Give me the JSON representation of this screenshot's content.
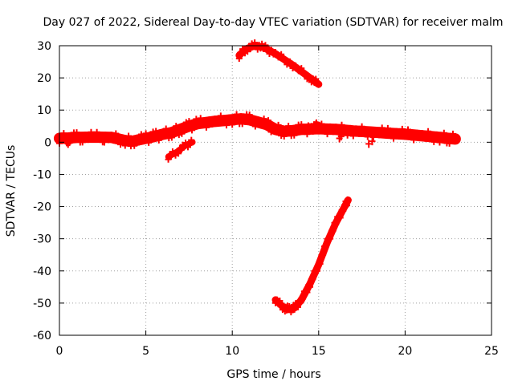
{
  "chart_data": {
    "type": "scatter",
    "title": "Day 027 of 2022, Sidereal Day-to-day VTEC variation (SDTVAR) for receiver malm",
    "xlabel": "GPS time / hours",
    "ylabel": "SDTVAR / TECUs",
    "xlim": [
      0,
      25
    ],
    "ylim": [
      -60,
      30
    ],
    "xticks": [
      0,
      5,
      10,
      15,
      20,
      25
    ],
    "yticks": [
      -60,
      -50,
      -40,
      -30,
      -20,
      -10,
      0,
      10,
      20,
      30
    ],
    "xtick_labels": [
      "0",
      "5",
      "10",
      "15",
      "20",
      "25"
    ],
    "ytick_labels": [
      "-60",
      "-50",
      "-40",
      "-30",
      "-20",
      "-10",
      "0",
      "10",
      "20",
      "30"
    ],
    "grid": true,
    "color": "#ff0000",
    "series": [
      {
        "name": "main-band",
        "band": 2.2,
        "x": [
          0,
          0.5,
          1,
          2,
          3,
          3.8,
          4.2,
          5,
          5.5,
          6,
          6.5,
          7,
          7.5,
          8,
          9,
          10,
          10.5,
          11,
          12,
          12.5,
          13,
          13.5,
          14,
          15,
          16,
          17,
          18,
          19,
          20,
          21,
          22,
          22.5,
          22.9
        ],
        "y": [
          1.2,
          1.3,
          1.5,
          1.6,
          1.5,
          0.5,
          0.3,
          1.2,
          1.8,
          2.5,
          3,
          4,
          5,
          5.8,
          6.5,
          7,
          7.3,
          7,
          5.5,
          4,
          3.4,
          3.6,
          4,
          4.2,
          4,
          3.5,
          3.2,
          2.8,
          2.5,
          2,
          1.5,
          1.2,
          1
        ]
      },
      {
        "name": "arc-15-upper",
        "band": 1.0,
        "x": [
          14.2,
          14.6,
          15.0
        ],
        "y": [
          4,
          5,
          5.6
        ]
      },
      {
        "name": "arc-low-7",
        "band": 1.2,
        "x": [
          6.3,
          6.8,
          7.3,
          7.7
        ],
        "y": [
          -4.5,
          -3,
          -1,
          0
        ]
      },
      {
        "name": "arc-top",
        "band": 1.4,
        "x": [
          10.4,
          10.8,
          11.3,
          11.8,
          12.5,
          13.5,
          14.5,
          15.0
        ],
        "y": [
          27,
          29,
          30,
          29.5,
          27.5,
          24,
          20,
          18
        ]
      },
      {
        "name": "arc-deep",
        "band": 1.4,
        "x": [
          12.5,
          13.0,
          13.3,
          13.6,
          14.0,
          14.5,
          15.0,
          15.5,
          16.0,
          16.5,
          16.7
        ],
        "y": [
          -49,
          -51.5,
          -52,
          -51.5,
          -49,
          -44,
          -38,
          -31,
          -25,
          -20,
          -18
        ]
      }
    ],
    "outliers": [
      {
        "x": 0.5,
        "y": -0.5
      },
      {
        "x": 1.2,
        "y": 0.2
      },
      {
        "x": 16.2,
        "y": 1.2
      },
      {
        "x": 16.3,
        "y": 1.8
      },
      {
        "x": 17.9,
        "y": -0.5
      },
      {
        "x": 18.1,
        "y": 0.3
      },
      {
        "x": 12.6,
        "y": 3.8
      },
      {
        "x": 2.6,
        "y": 0.2
      }
    ]
  }
}
